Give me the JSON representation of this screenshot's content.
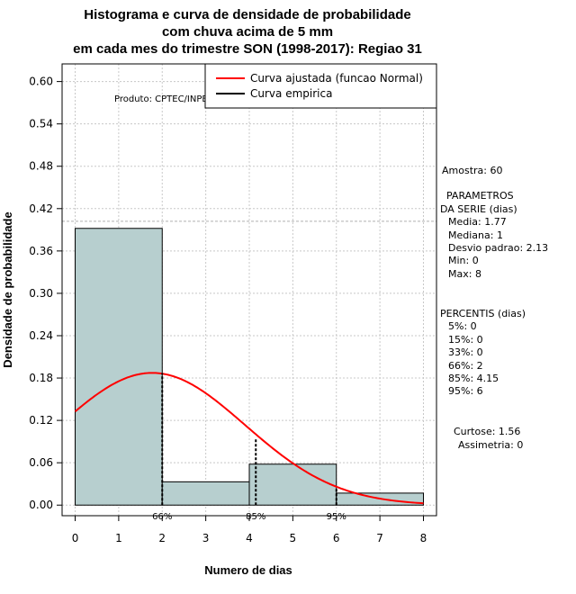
{
  "chart_data": {
    "type": "histogram",
    "title_lines": [
      "Histograma e curva de densidade de probabilidade",
      "com chuva acima de 5 mm",
      "em cada mes do trimestre SON (1998-2017): Regiao 31"
    ],
    "xlabel": "Numero de dias",
    "ylabel": "Densidade de probabilidade",
    "xlim": [
      -0.3,
      8.3
    ],
    "ylim": [
      -0.015,
      0.625
    ],
    "x_ticks": [
      0,
      1,
      2,
      3,
      4,
      5,
      6,
      7,
      8
    ],
    "y_ticks": [
      "0.00",
      "0.06",
      "0.12",
      "0.18",
      "0.24",
      "0.30",
      "0.36",
      "0.42",
      "0.48",
      "0.54",
      "0.60"
    ],
    "bins": [
      {
        "x0": 0,
        "x1": 2,
        "density": 0.392
      },
      {
        "x0": 2,
        "x1": 4,
        "density": 0.033
      },
      {
        "x0": 4,
        "x1": 6,
        "density": 0.058
      },
      {
        "x0": 6,
        "x1": 8,
        "density": 0.017
      }
    ],
    "bar_color": "#b7cfcf",
    "normal_curve": {
      "mean": 1.77,
      "sd": 2.13,
      "color": "#ff0000"
    },
    "reference_line_y": 0.402,
    "percentile_markers": [
      {
        "label": "66%",
        "x": 2,
        "y": 0.187
      },
      {
        "label": "85%",
        "x": 4.15,
        "y": 0.095
      },
      {
        "label": "95%",
        "x": 6,
        "y": 0.025
      }
    ],
    "legend": [
      {
        "label": "Curva ajustada (funcao Normal)",
        "color": "#ff0000"
      },
      {
        "label": "Curva empirica",
        "color": "#000000"
      }
    ],
    "legend_position": "top-right",
    "source_note": "Produto: CPTEC/INPE"
  },
  "stats_panel": {
    "amostra": "Amostra: 60",
    "param_title_1": "PARAMETROS",
    "param_title_2": "DA SERIE (dias)",
    "media": "Media: 1.77",
    "mediana": "Mediana: 1",
    "desvio": "Desvio padrao: 2.13",
    "min": "Min: 0",
    "max": "Max: 8",
    "percentis_title": "PERCENTIS (dias)",
    "p5": "5%: 0",
    "p15": "15%: 0",
    "p33": "33%: 0",
    "p66": "66%: 2",
    "p85": "85%: 4.15",
    "p95": "95%: 6",
    "curtose": "Curtose: 1.56",
    "assimetria": "Assimetria: 0"
  }
}
